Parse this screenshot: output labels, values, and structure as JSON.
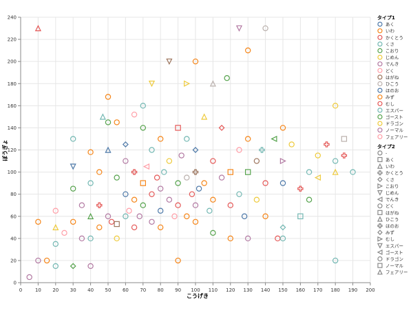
{
  "chart_data": {
    "type": "scatter",
    "xlabel": "こうげき",
    "ylabel": "ぼうぎょ",
    "xlim": [
      0,
      200
    ],
    "ylim": [
      0,
      240
    ],
    "xticks": [
      0,
      10,
      20,
      30,
      40,
      50,
      60,
      70,
      80,
      90,
      100,
      110,
      120,
      130,
      140,
      150,
      160,
      170,
      180,
      190,
      200
    ],
    "yticks": [
      0,
      20,
      40,
      60,
      80,
      100,
      120,
      140,
      160,
      180,
      200,
      220,
      240
    ],
    "grid": true,
    "legend_placement": "right",
    "legend1": {
      "title": "タイプ1",
      "entries": [
        "あく",
        "いわ",
        "かくとう",
        "くさ",
        "こおり",
        "じめん",
        "でんき",
        "どく",
        "はがね",
        "ひこう",
        "ほのお",
        "みず",
        "むし",
        "エスパー",
        "ゴースト",
        "ドラゴン",
        "ノーマル",
        "フェアリー"
      ]
    },
    "legend2": {
      "title": "タイプ2",
      "entries": [
        "-",
        "あく",
        "いわ",
        "かくとう",
        "くさ",
        "こおり",
        "じめん",
        "でんき",
        "どく",
        "はがね",
        "ひこう",
        "ほのお",
        "みず",
        "むし",
        "エスパー",
        "ゴースト",
        "ドラゴン",
        "ノーマル",
        "フェアリー"
      ]
    },
    "colors": [
      "#4c78a8",
      "#f58518",
      "#e45756",
      "#72b7b2",
      "#54a24b",
      "#eeca3b",
      "#b279a2",
      "#ff9da6",
      "#9d755d",
      "#bab0ac"
    ],
    "shapes": [
      "circle",
      "square",
      "triangle-up",
      "cross",
      "diamond",
      "triangle-right",
      "triangle-down",
      "triangle-left"
    ],
    "points": [
      [
        5,
        5,
        16,
        0
      ],
      [
        10,
        20,
        16,
        0
      ],
      [
        10,
        230,
        12,
        2
      ],
      [
        10,
        55,
        11,
        0
      ],
      [
        15,
        20,
        1,
        0
      ],
      [
        20,
        15,
        13,
        0
      ],
      [
        20,
        65,
        17,
        0
      ],
      [
        20,
        50,
        5,
        2
      ],
      [
        20,
        35,
        3,
        0
      ],
      [
        25,
        45,
        7,
        0
      ],
      [
        30,
        15,
        14,
        12
      ],
      [
        30,
        130,
        3,
        0
      ],
      [
        30,
        105,
        0,
        6
      ],
      [
        30,
        85,
        4,
        0
      ],
      [
        30,
        55,
        11,
        0
      ],
      [
        35,
        40,
        6,
        0
      ],
      [
        35,
        70,
        16,
        0
      ],
      [
        40,
        15,
        16,
        0
      ],
      [
        40,
        40,
        3,
        0
      ],
      [
        40,
        118,
        1,
        0
      ],
      [
        40,
        60,
        14,
        2
      ],
      [
        40,
        90,
        13,
        0
      ],
      [
        45,
        50,
        11,
        0
      ],
      [
        45,
        70,
        12,
        3
      ],
      [
        45,
        100,
        1,
        0
      ],
      [
        47,
        150,
        13,
        2
      ],
      [
        50,
        168,
        1,
        0
      ],
      [
        50,
        120,
        0,
        2
      ],
      [
        50,
        145,
        4,
        0
      ],
      [
        50,
        60,
        16,
        0
      ],
      [
        52,
        55,
        2,
        0
      ],
      [
        55,
        53,
        8,
        1
      ],
      [
        55,
        95,
        4,
        0
      ],
      [
        55,
        145,
        1,
        0
      ],
      [
        55,
        40,
        5,
        0
      ],
      [
        60,
        60,
        3,
        0
      ],
      [
        60,
        80,
        10,
        0
      ],
      [
        60,
        125,
        0,
        4
      ],
      [
        60,
        110,
        6,
        0
      ],
      [
        62,
        65,
        17,
        0
      ],
      [
        65,
        75,
        11,
        0
      ],
      [
        65,
        50,
        12,
        0
      ],
      [
        65,
        152,
        17,
        0
      ],
      [
        65,
        100,
        2,
        3
      ],
      [
        68,
        60,
        6,
        0
      ],
      [
        70,
        160,
        3,
        0
      ],
      [
        70,
        70,
        4,
        0
      ],
      [
        70,
        90,
        1,
        1
      ],
      [
        70,
        140,
        14,
        0
      ],
      [
        72,
        105,
        7,
        7
      ],
      [
        75,
        180,
        5,
        6
      ],
      [
        75,
        80,
        2,
        0
      ],
      [
        75,
        55,
        16,
        0
      ],
      [
        75,
        120,
        3,
        0
      ],
      [
        78,
        95,
        12,
        8
      ],
      [
        80,
        50,
        11,
        0
      ],
      [
        80,
        85,
        6,
        0
      ],
      [
        80,
        130,
        1,
        0
      ],
      [
        80,
        65,
        0,
        0
      ],
      [
        82,
        100,
        13,
        0
      ],
      [
        85,
        200,
        8,
        6
      ],
      [
        85,
        75,
        16,
        0
      ],
      [
        85,
        110,
        5,
        0
      ],
      [
        88,
        60,
        17,
        0
      ],
      [
        90,
        20,
        1,
        0
      ],
      [
        90,
        90,
        4,
        0
      ],
      [
        90,
        140,
        12,
        1
      ],
      [
        90,
        70,
        2,
        0
      ],
      [
        92,
        115,
        6,
        0
      ],
      [
        95,
        180,
        15,
        5
      ],
      [
        95,
        95,
        9,
        0
      ],
      [
        95,
        60,
        11,
        0
      ],
      [
        95,
        130,
        3,
        0
      ],
      [
        98,
        80,
        12,
        0
      ],
      [
        100,
        100,
        8,
        3
      ],
      [
        100,
        200,
        11,
        0
      ],
      [
        100,
        120,
        0,
        4
      ],
      [
        100,
        70,
        16,
        0
      ],
      [
        100,
        55,
        1,
        0
      ],
      [
        102,
        85,
        10,
        0
      ],
      [
        105,
        150,
        5,
        2
      ],
      [
        105,
        90,
        1,
        0
      ],
      [
        108,
        65,
        13,
        0
      ],
      [
        110,
        180,
        9,
        2
      ],
      [
        110,
        110,
        2,
        0
      ],
      [
        110,
        75,
        11,
        0
      ],
      [
        110,
        45,
        4,
        0
      ],
      [
        115,
        140,
        2,
        4
      ],
      [
        115,
        95,
        6,
        0
      ],
      [
        118,
        185,
        4,
        0
      ],
      [
        120,
        100,
        1,
        9
      ],
      [
        120,
        70,
        12,
        0
      ],
      [
        120,
        40,
        11,
        0
      ],
      [
        125,
        230,
        16,
        6
      ],
      [
        125,
        120,
        7,
        0
      ],
      [
        125,
        80,
        3,
        0
      ],
      [
        128,
        60,
        0,
        0
      ],
      [
        130,
        210,
        1,
        0
      ],
      [
        130,
        100,
        14,
        1
      ],
      [
        130,
        130,
        11,
        0
      ],
      [
        130,
        40,
        16,
        0
      ],
      [
        135,
        75,
        5,
        0
      ],
      [
        135,
        110,
        8,
        0
      ],
      [
        138,
        120,
        3,
        3
      ],
      [
        140,
        230,
        9,
        0
      ],
      [
        140,
        90,
        12,
        0
      ],
      [
        140,
        60,
        1,
        0
      ],
      [
        145,
        130,
        4,
        7
      ],
      [
        147,
        40,
        2,
        0
      ],
      [
        150,
        140,
        1,
        0
      ],
      [
        150,
        110,
        6,
        5
      ],
      [
        150,
        90,
        0,
        0
      ],
      [
        150,
        50,
        3,
        4
      ],
      [
        150,
        40,
        13,
        0
      ],
      [
        155,
        125,
        5,
        0
      ],
      [
        160,
        85,
        2,
        3
      ],
      [
        160,
        60,
        3,
        1
      ],
      [
        165,
        100,
        3,
        0
      ],
      [
        165,
        75,
        4,
        0
      ],
      [
        170,
        95,
        5,
        7
      ],
      [
        170,
        115,
        5,
        0
      ],
      [
        175,
        125,
        2,
        3
      ],
      [
        180,
        160,
        5,
        0
      ],
      [
        180,
        100,
        15,
        2
      ],
      [
        180,
        20,
        3,
        0
      ],
      [
        180,
        110,
        3,
        0
      ],
      [
        185,
        115,
        2,
        3
      ],
      [
        185,
        130,
        9,
        1
      ],
      [
        190,
        100,
        3,
        0
      ]
    ]
  }
}
